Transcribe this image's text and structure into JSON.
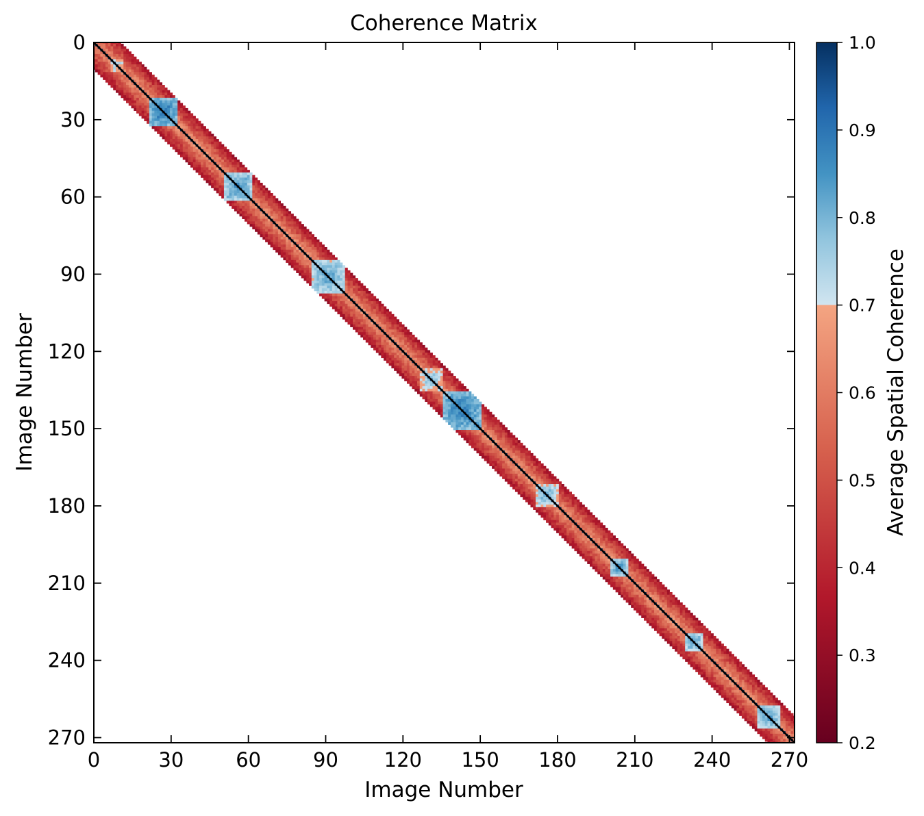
{
  "chart_data": {
    "type": "heatmap",
    "title": "Coherence Matrix",
    "xlabel": "Image Number",
    "ylabel": "Image Number",
    "n_images": 273,
    "xlim": [
      0,
      272
    ],
    "ylim": [
      272,
      0
    ],
    "x_ticks": [
      0,
      30,
      60,
      90,
      120,
      150,
      180,
      210,
      240,
      270
    ],
    "y_ticks": [
      0,
      30,
      60,
      90,
      120,
      150,
      180,
      210,
      240,
      270
    ],
    "band_halfwidth_images": 10,
    "diagonal_value": 1.0,
    "background_value": null,
    "high_coherence_clusters": [
      {
        "center": 9,
        "halfwidth": 2,
        "peak": 0.78
      },
      {
        "center": 27,
        "halfwidth": 5,
        "peak": 0.9
      },
      {
        "center": 56,
        "halfwidth": 5,
        "peak": 0.86
      },
      {
        "center": 91,
        "halfwidth": 6,
        "peak": 0.84
      },
      {
        "center": 131,
        "halfwidth": 4,
        "peak": 0.8
      },
      {
        "center": 143,
        "halfwidth": 7,
        "peak": 0.9
      },
      {
        "center": 176,
        "halfwidth": 4,
        "peak": 0.82
      },
      {
        "center": 204,
        "halfwidth": 3,
        "peak": 0.85
      },
      {
        "center": 233,
        "halfwidth": 3,
        "peak": 0.84
      },
      {
        "center": 262,
        "halfwidth": 4,
        "peak": 0.85
      }
    ],
    "off_cluster_coherence_range": [
      0.35,
      0.66
    ],
    "colorbar": {
      "label": "Average Spatial Coherence",
      "min": 0.2,
      "max": 1.0,
      "threshold": 0.7,
      "ticks": [
        "0.2",
        "0.3",
        "0.4",
        "0.5",
        "0.6",
        "0.7",
        "0.8",
        "0.9",
        "1.0"
      ],
      "low_colors": [
        "#67001f",
        "#b2182b",
        "#d6604d",
        "#f4a582"
      ],
      "high_colors": [
        "#d1e5f0",
        "#92c5de",
        "#4393c3",
        "#2166ac",
        "#053061"
      ]
    },
    "grid": false,
    "legend": "none"
  }
}
